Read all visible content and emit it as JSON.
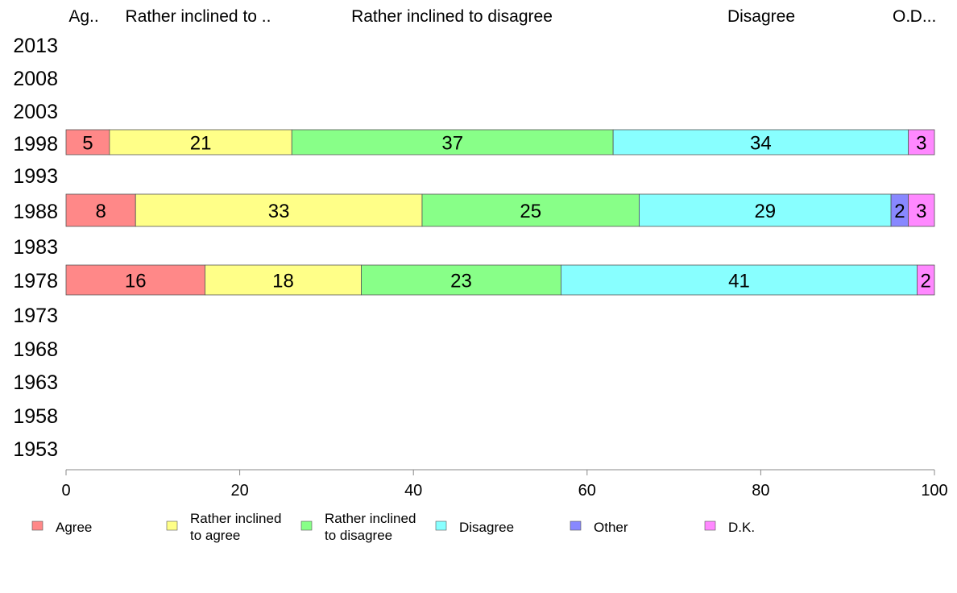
{
  "chart_data": {
    "type": "bar",
    "orientation": "horizontal",
    "stacked": true,
    "title": "",
    "xlabel": "",
    "ylabel": "",
    "xlim": [
      0,
      100
    ],
    "x_ticks": [
      0,
      20,
      40,
      60,
      80,
      100
    ],
    "categories": [
      "2013",
      "2008",
      "2003",
      "1998",
      "1993",
      "1988",
      "1983",
      "1978",
      "1973",
      "1968",
      "1963",
      "1958",
      "1953"
    ],
    "top_labels": [
      "Ag..",
      "Rather inclined to ..",
      "Rather inclined to disagree",
      "Disagree",
      "O..",
      "D..."
    ],
    "series": [
      {
        "name": "Agree",
        "legend_lines": [
          "Agree"
        ],
        "color": "#ff8888",
        "values": [
          null,
          null,
          null,
          5,
          null,
          8,
          null,
          16,
          null,
          null,
          null,
          null,
          null
        ]
      },
      {
        "name": "Rather inclined to agree",
        "legend_lines": [
          "Rather inclined",
          "to agree"
        ],
        "color": "#ffff88",
        "values": [
          null,
          null,
          null,
          21,
          null,
          33,
          null,
          18,
          null,
          null,
          null,
          null,
          null
        ]
      },
      {
        "name": "Rather inclined to disagree",
        "legend_lines": [
          "Rather inclined",
          "to disagree"
        ],
        "color": "#88ff88",
        "values": [
          null,
          null,
          null,
          37,
          null,
          25,
          null,
          23,
          null,
          null,
          null,
          null,
          null
        ]
      },
      {
        "name": "Disagree",
        "legend_lines": [
          "Disagree"
        ],
        "color": "#88ffff",
        "values": [
          null,
          null,
          null,
          34,
          null,
          29,
          null,
          41,
          null,
          null,
          null,
          null,
          null
        ]
      },
      {
        "name": "Other",
        "legend_lines": [
          "Other"
        ],
        "color": "#8888ff",
        "values": [
          null,
          null,
          null,
          0,
          null,
          2,
          null,
          0,
          null,
          null,
          null,
          null,
          null
        ]
      },
      {
        "name": "D.K.",
        "legend_lines": [
          "D.K."
        ],
        "color": "#ff88ff",
        "values": [
          null,
          null,
          null,
          3,
          null,
          3,
          null,
          2,
          null,
          null,
          null,
          null,
          null
        ]
      }
    ],
    "legend_position": "bottom",
    "grid": false
  }
}
